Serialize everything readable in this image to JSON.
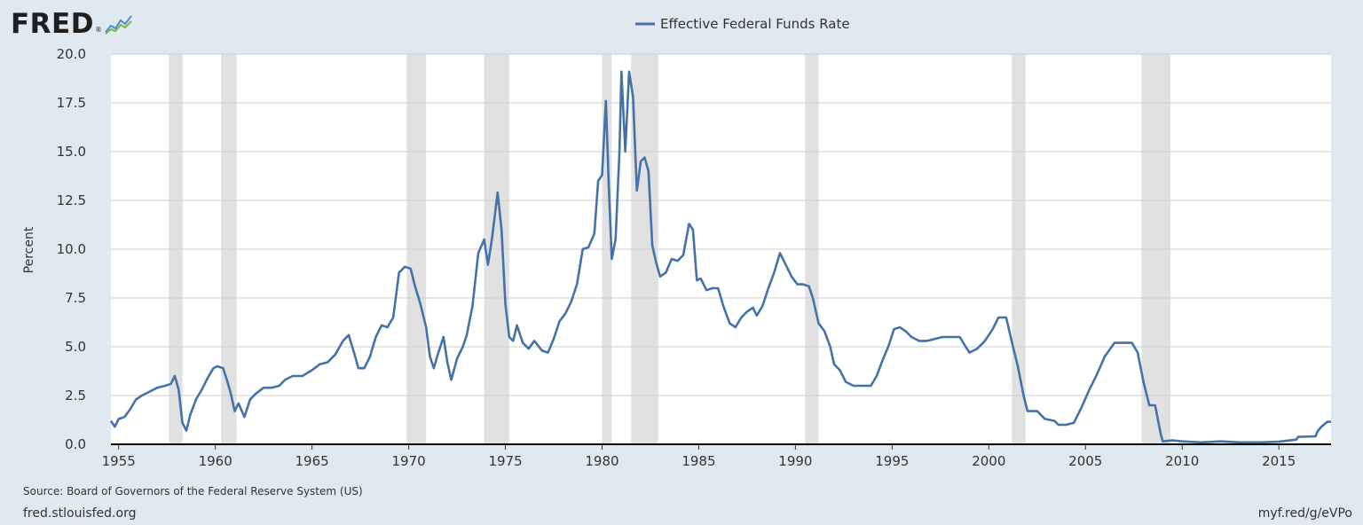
{
  "logo": {
    "text": "FRED",
    "registered": "®",
    "icon": "mini-chart-icon"
  },
  "footer": {
    "source": "Source: Board of Governors of the Federal Reserve System (US)",
    "site": "fred.stlouisfed.org",
    "shortlink": "myf.red/g/eVPo"
  },
  "chart_data": {
    "type": "line",
    "title": "",
    "xlabel": "",
    "ylabel": "Percent",
    "xlim": [
      1954.6,
      2017.7
    ],
    "ylim": [
      0,
      20
    ],
    "grid": true,
    "legend_position": "top-center",
    "x_ticks": [
      1955,
      1960,
      1965,
      1970,
      1975,
      1980,
      1985,
      1990,
      1995,
      2000,
      2005,
      2010,
      2015
    ],
    "x_tick_labels": [
      "1955",
      "1960",
      "1965",
      "1970",
      "1975",
      "1980",
      "1985",
      "1990",
      "1995",
      "2000",
      "2005",
      "2010",
      "2015"
    ],
    "y_ticks": [
      0,
      2.5,
      5,
      7.5,
      10,
      12.5,
      15,
      17.5,
      20
    ],
    "y_tick_labels": [
      "0.0",
      "2.5",
      "5.0",
      "7.5",
      "10.0",
      "12.5",
      "15.0",
      "17.5",
      "20.0"
    ],
    "recessions": [
      [
        1957.6,
        1958.3
      ],
      [
        1960.3,
        1961.1
      ],
      [
        1969.9,
        1970.9
      ],
      [
        1973.9,
        1975.2
      ],
      [
        1980.0,
        1980.5
      ],
      [
        1981.5,
        1982.9
      ],
      [
        1990.5,
        1991.2
      ],
      [
        2001.2,
        2001.9
      ],
      [
        2007.9,
        2009.4
      ]
    ],
    "series": [
      {
        "name": "Effective Federal Funds Rate",
        "color": "#4572a7",
        "points": [
          [
            1954.6,
            1.2
          ],
          [
            1954.8,
            0.9
          ],
          [
            1955.0,
            1.3
          ],
          [
            1955.3,
            1.4
          ],
          [
            1955.6,
            1.8
          ],
          [
            1955.9,
            2.3
          ],
          [
            1956.2,
            2.5
          ],
          [
            1956.6,
            2.7
          ],
          [
            1957.0,
            2.9
          ],
          [
            1957.4,
            3.0
          ],
          [
            1957.7,
            3.1
          ],
          [
            1957.9,
            3.5
          ],
          [
            1958.1,
            2.8
          ],
          [
            1958.3,
            1.1
          ],
          [
            1958.5,
            0.7
          ],
          [
            1958.7,
            1.5
          ],
          [
            1959.0,
            2.3
          ],
          [
            1959.3,
            2.8
          ],
          [
            1959.6,
            3.4
          ],
          [
            1959.9,
            3.9
          ],
          [
            1960.1,
            4.0
          ],
          [
            1960.4,
            3.9
          ],
          [
            1960.6,
            3.3
          ],
          [
            1960.8,
            2.6
          ],
          [
            1961.0,
            1.7
          ],
          [
            1961.2,
            2.1
          ],
          [
            1961.5,
            1.4
          ],
          [
            1961.8,
            2.3
          ],
          [
            1962.1,
            2.6
          ],
          [
            1962.5,
            2.9
          ],
          [
            1962.9,
            2.9
          ],
          [
            1963.3,
            3.0
          ],
          [
            1963.6,
            3.3
          ],
          [
            1964.0,
            3.5
          ],
          [
            1964.5,
            3.5
          ],
          [
            1965.0,
            3.8
          ],
          [
            1965.4,
            4.1
          ],
          [
            1965.8,
            4.2
          ],
          [
            1966.2,
            4.6
          ],
          [
            1966.6,
            5.3
          ],
          [
            1966.9,
            5.6
          ],
          [
            1967.2,
            4.6
          ],
          [
            1967.4,
            3.9
          ],
          [
            1967.7,
            3.9
          ],
          [
            1968.0,
            4.5
          ],
          [
            1968.3,
            5.5
          ],
          [
            1968.6,
            6.1
          ],
          [
            1968.9,
            6.0
          ],
          [
            1969.2,
            6.5
          ],
          [
            1969.5,
            8.8
          ],
          [
            1969.8,
            9.1
          ],
          [
            1970.1,
            9.0
          ],
          [
            1970.3,
            8.2
          ],
          [
            1970.6,
            7.2
          ],
          [
            1970.9,
            6.0
          ],
          [
            1971.1,
            4.5
          ],
          [
            1971.3,
            3.9
          ],
          [
            1971.5,
            4.6
          ],
          [
            1971.8,
            5.5
          ],
          [
            1972.0,
            4.2
          ],
          [
            1972.2,
            3.3
          ],
          [
            1972.5,
            4.4
          ],
          [
            1972.8,
            5.0
          ],
          [
            1973.0,
            5.6
          ],
          [
            1973.3,
            7.1
          ],
          [
            1973.6,
            9.8
          ],
          [
            1973.9,
            10.5
          ],
          [
            1974.1,
            9.2
          ],
          [
            1974.3,
            10.5
          ],
          [
            1974.6,
            12.9
          ],
          [
            1974.8,
            11.0
          ],
          [
            1975.0,
            7.2
          ],
          [
            1975.2,
            5.5
          ],
          [
            1975.4,
            5.3
          ],
          [
            1975.6,
            6.1
          ],
          [
            1975.9,
            5.2
          ],
          [
            1976.2,
            4.9
          ],
          [
            1976.5,
            5.3
          ],
          [
            1976.9,
            4.8
          ],
          [
            1977.2,
            4.7
          ],
          [
            1977.5,
            5.4
          ],
          [
            1977.8,
            6.3
          ],
          [
            1978.1,
            6.7
          ],
          [
            1978.4,
            7.3
          ],
          [
            1978.7,
            8.2
          ],
          [
            1979.0,
            10.0
          ],
          [
            1979.3,
            10.1
          ],
          [
            1979.6,
            10.8
          ],
          [
            1979.8,
            13.5
          ],
          [
            1980.0,
            13.8
          ],
          [
            1980.2,
            17.6
          ],
          [
            1980.35,
            13.2
          ],
          [
            1980.5,
            9.5
          ],
          [
            1980.7,
            10.5
          ],
          [
            1980.9,
            15.0
          ],
          [
            1981.0,
            19.1
          ],
          [
            1981.2,
            15.0
          ],
          [
            1981.4,
            19.1
          ],
          [
            1981.6,
            17.8
          ],
          [
            1981.8,
            13.0
          ],
          [
            1982.0,
            14.5
          ],
          [
            1982.2,
            14.7
          ],
          [
            1982.4,
            14.0
          ],
          [
            1982.6,
            10.2
          ],
          [
            1982.8,
            9.3
          ],
          [
            1983.0,
            8.6
          ],
          [
            1983.3,
            8.8
          ],
          [
            1983.6,
            9.5
          ],
          [
            1983.9,
            9.4
          ],
          [
            1984.2,
            9.7
          ],
          [
            1984.5,
            11.3
          ],
          [
            1984.7,
            11.0
          ],
          [
            1984.9,
            8.4
          ],
          [
            1985.1,
            8.5
          ],
          [
            1985.4,
            7.9
          ],
          [
            1985.7,
            8.0
          ],
          [
            1986.0,
            8.0
          ],
          [
            1986.3,
            7.0
          ],
          [
            1986.6,
            6.2
          ],
          [
            1986.9,
            6.0
          ],
          [
            1987.2,
            6.5
          ],
          [
            1987.5,
            6.8
          ],
          [
            1987.8,
            7.0
          ],
          [
            1988.0,
            6.6
          ],
          [
            1988.3,
            7.1
          ],
          [
            1988.6,
            8.0
          ],
          [
            1988.9,
            8.8
          ],
          [
            1989.2,
            9.8
          ],
          [
            1989.5,
            9.2
          ],
          [
            1989.8,
            8.6
          ],
          [
            1990.1,
            8.2
          ],
          [
            1990.4,
            8.2
          ],
          [
            1990.7,
            8.1
          ],
          [
            1990.9,
            7.5
          ],
          [
            1991.2,
            6.2
          ],
          [
            1991.5,
            5.8
          ],
          [
            1991.8,
            5.0
          ],
          [
            1992.0,
            4.1
          ],
          [
            1992.3,
            3.8
          ],
          [
            1992.6,
            3.2
          ],
          [
            1993.0,
            3.0
          ],
          [
            1993.5,
            3.0
          ],
          [
            1993.9,
            3.0
          ],
          [
            1994.2,
            3.5
          ],
          [
            1994.5,
            4.3
          ],
          [
            1994.8,
            5.0
          ],
          [
            1995.1,
            5.9
          ],
          [
            1995.4,
            6.0
          ],
          [
            1995.7,
            5.8
          ],
          [
            1996.0,
            5.5
          ],
          [
            1996.4,
            5.3
          ],
          [
            1996.8,
            5.3
          ],
          [
            1997.2,
            5.4
          ],
          [
            1997.6,
            5.5
          ],
          [
            1998.0,
            5.5
          ],
          [
            1998.5,
            5.5
          ],
          [
            1998.8,
            5.0
          ],
          [
            1999.0,
            4.7
          ],
          [
            1999.4,
            4.9
          ],
          [
            1999.8,
            5.3
          ],
          [
            2000.2,
            5.9
          ],
          [
            2000.5,
            6.5
          ],
          [
            2000.9,
            6.5
          ],
          [
            2001.2,
            5.2
          ],
          [
            2001.5,
            4.0
          ],
          [
            2001.8,
            2.5
          ],
          [
            2002.0,
            1.7
          ],
          [
            2002.5,
            1.7
          ],
          [
            2002.9,
            1.3
          ],
          [
            2003.4,
            1.2
          ],
          [
            2003.6,
            1.0
          ],
          [
            2004.0,
            1.0
          ],
          [
            2004.4,
            1.1
          ],
          [
            2004.8,
            1.9
          ],
          [
            2005.2,
            2.8
          ],
          [
            2005.6,
            3.6
          ],
          [
            2006.0,
            4.5
          ],
          [
            2006.5,
            5.2
          ],
          [
            2007.0,
            5.2
          ],
          [
            2007.4,
            5.2
          ],
          [
            2007.7,
            4.7
          ],
          [
            2008.0,
            3.2
          ],
          [
            2008.3,
            2.0
          ],
          [
            2008.6,
            2.0
          ],
          [
            2008.9,
            0.5
          ],
          [
            2009.0,
            0.15
          ],
          [
            2009.5,
            0.2
          ],
          [
            2010.0,
            0.15
          ],
          [
            2011.0,
            0.1
          ],
          [
            2012.0,
            0.15
          ],
          [
            2013.0,
            0.1
          ],
          [
            2014.0,
            0.1
          ],
          [
            2015.0,
            0.13
          ],
          [
            2015.9,
            0.24
          ],
          [
            2016.0,
            0.38
          ],
          [
            2016.9,
            0.41
          ],
          [
            2017.0,
            0.66
          ],
          [
            2017.2,
            0.9
          ],
          [
            2017.5,
            1.15
          ],
          [
            2017.7,
            1.16
          ]
        ]
      }
    ]
  }
}
